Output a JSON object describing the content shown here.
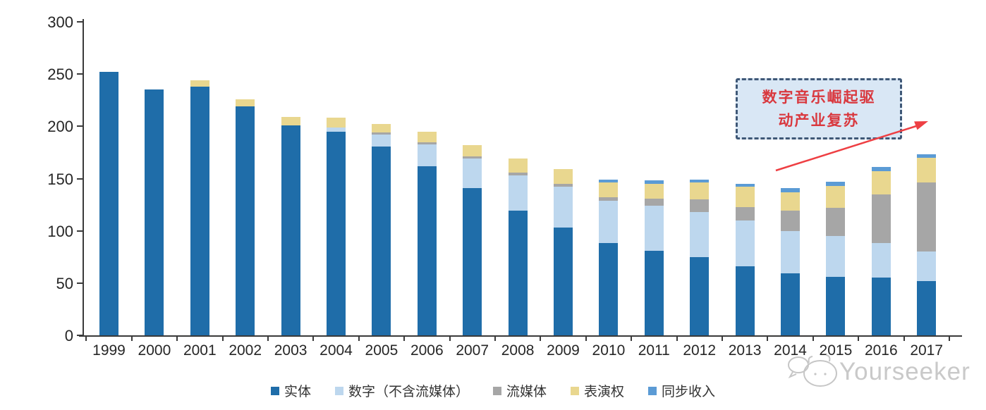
{
  "chart_data": {
    "type": "bar",
    "stacked": true,
    "title": "",
    "xlabel": "",
    "ylabel": "",
    "categories": [
      "1999",
      "2000",
      "2001",
      "2002",
      "2003",
      "2004",
      "2005",
      "2006",
      "2007",
      "2008",
      "2009",
      "2010",
      "2011",
      "2012",
      "2013",
      "2014",
      "2015",
      "2016",
      "2017"
    ],
    "series": [
      {
        "name": "实体",
        "color": "#1f6da9",
        "values": [
          252,
          235,
          238,
          219,
          201,
          195,
          181,
          162,
          141,
          119,
          103,
          88,
          81,
          75,
          66,
          59,
          56,
          55,
          52
        ]
      },
      {
        "name": "数字（不含流媒体）",
        "color": "#bdd7ee",
        "values": [
          0,
          0,
          0,
          0,
          0,
          4,
          11,
          21,
          28,
          34,
          39,
          41,
          43,
          43,
          44,
          41,
          39,
          33,
          28
        ]
      },
      {
        "name": "流媒体",
        "color": "#a6a6a6",
        "values": [
          0,
          0,
          0,
          0,
          0,
          0,
          2,
          2,
          2,
          3,
          3,
          3,
          7,
          12,
          13,
          19,
          27,
          47,
          66
        ]
      },
      {
        "name": "表演权",
        "color": "#e9d78f",
        "values": [
          0,
          0,
          6,
          7,
          8,
          9,
          8,
          10,
          11,
          13,
          14,
          14,
          14,
          16,
          19,
          18,
          21,
          22,
          24
        ]
      },
      {
        "name": "同步收入",
        "color": "#5b9bd5",
        "values": [
          0,
          0,
          0,
          0,
          0,
          0,
          0,
          0,
          0,
          0,
          0,
          3,
          3,
          3,
          3,
          4,
          4,
          4,
          3
        ]
      }
    ],
    "ylim": [
      0,
      300
    ],
    "yticks": [
      0,
      50,
      100,
      150,
      200,
      250,
      300
    ],
    "grid": false,
    "legend_position": "bottom"
  },
  "annotation": {
    "line1": "数字音乐崛起驱",
    "line2": "动产业复苏",
    "text_color": "#d9383e",
    "box_fill": "#d9e7f5",
    "box_border": "#3f5877",
    "arrow_color": "#ee3f43"
  },
  "watermark": {
    "text": "Yourseeker",
    "color": "#c9c9c9"
  }
}
